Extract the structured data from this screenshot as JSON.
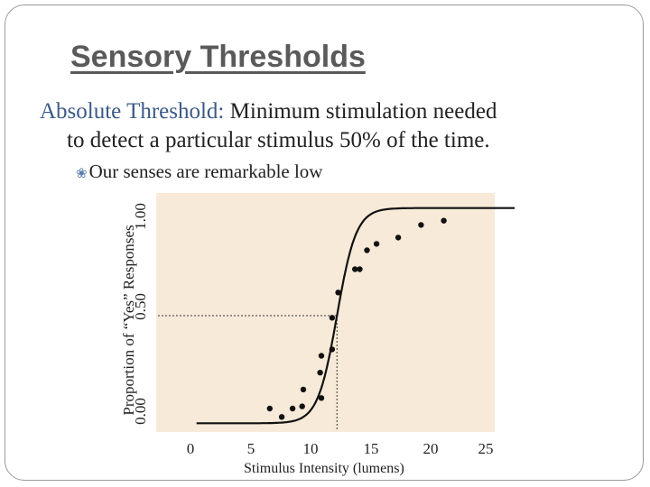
{
  "slide": {
    "title": "Sensory Thresholds",
    "definition_term": "Absolute Threshold:",
    "definition_line1": " Minimum stimulation needed",
    "definition_line2": "to detect a particular stimulus 50% of the time.",
    "bullet": "Our senses are remarkable low"
  },
  "chart_data": {
    "type": "scatter",
    "xlabel": "Stimulus Intensity (lumens)",
    "ylabel": "Proportion of “Yes” Responses",
    "x_ticks": [
      "0",
      "5",
      "10",
      "15",
      "20",
      "25"
    ],
    "y_ticks": [
      "0.00",
      "0.50",
      "1.00"
    ],
    "xlim": [
      0,
      25
    ],
    "ylim": [
      0,
      1.0
    ],
    "background_color": "#f8ead8",
    "points": [
      {
        "x": 6.6,
        "y": 0.06
      },
      {
        "x": 7.6,
        "y": 0.02
      },
      {
        "x": 8.5,
        "y": 0.06
      },
      {
        "x": 9.3,
        "y": 0.07
      },
      {
        "x": 9.4,
        "y": 0.15
      },
      {
        "x": 10.9,
        "y": 0.11
      },
      {
        "x": 10.8,
        "y": 0.23
      },
      {
        "x": 10.9,
        "y": 0.31
      },
      {
        "x": 11.8,
        "y": 0.34
      },
      {
        "x": 11.8,
        "y": 0.49
      },
      {
        "x": 12.3,
        "y": 0.61
      },
      {
        "x": 13.7,
        "y": 0.72
      },
      {
        "x": 14.1,
        "y": 0.72
      },
      {
        "x": 14.7,
        "y": 0.81
      },
      {
        "x": 15.5,
        "y": 0.84
      },
      {
        "x": 17.3,
        "y": 0.87
      },
      {
        "x": 19.2,
        "y": 0.93
      },
      {
        "x": 21.1,
        "y": 0.95
      }
    ],
    "fit_curve": {
      "type": "logistic",
      "midpoint": 12.2,
      "slope": 1.25,
      "x_start": 0.5,
      "x_end": 27
    },
    "threshold": {
      "x": 12.2,
      "y": 0.5
    }
  }
}
